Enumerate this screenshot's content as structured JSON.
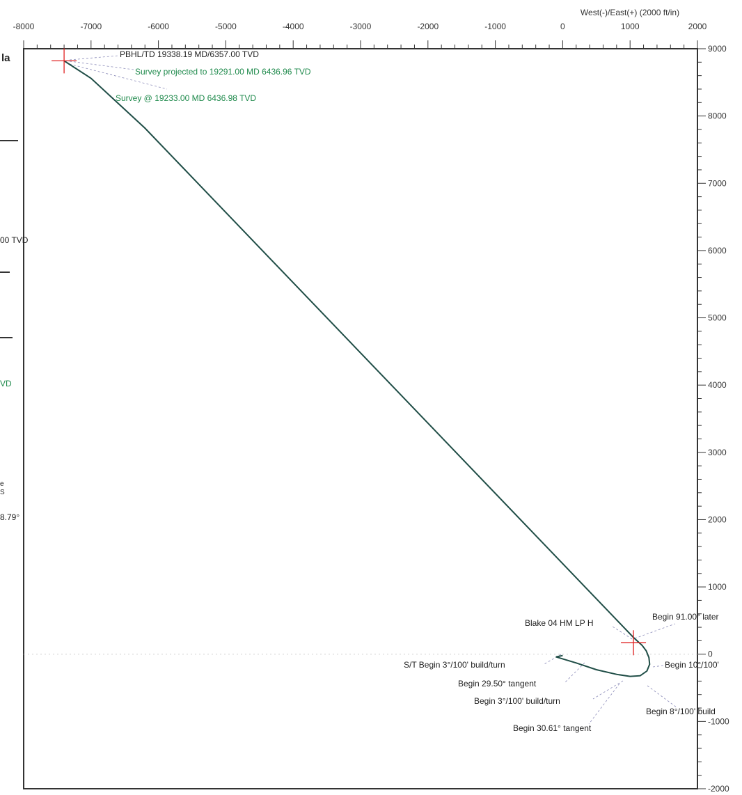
{
  "chart_data": {
    "type": "line",
    "x_axis_title": "West(-)/East(+) (2000 ft/in)",
    "x_ticks": [
      "-8000",
      "-7000",
      "-6000",
      "-5000",
      "-4000",
      "-3000",
      "-2000",
      "-1000",
      "0",
      "1000",
      "2000"
    ],
    "y_ticks": [
      "9000",
      "8000",
      "7000",
      "6000",
      "5000",
      "4000",
      "3000",
      "2000",
      "1000",
      "0",
      "-1000",
      "-2000"
    ],
    "xlim": [
      -8000,
      2000
    ],
    "ylim": [
      -2000,
      9000
    ],
    "colors": {
      "path": "#1f4d46",
      "marker": "#e02020",
      "green_text": "#1f8a4c"
    },
    "series": [
      {
        "x": [
          0,
          -100,
          200,
          500,
          800,
          1000,
          1150,
          1250,
          1290,
          1280,
          1240,
          1180,
          1050,
          -6200,
          -7000,
          -7400
        ],
        "y": [
          -20,
          -40,
          -130,
          -230,
          -300,
          -330,
          -320,
          -250,
          -150,
          -50,
          50,
          130,
          250,
          7820,
          8560,
          8820
        ]
      }
    ],
    "markers": [
      {
        "x": -7400,
        "y": 8820
      },
      {
        "x": 1050,
        "y": 170
      }
    ],
    "annotations": [
      {
        "text": "PBHL/TD 19338.19 MD/6357.00 TVD",
        "color": "dark"
      },
      {
        "text": "Survey projected to 19291.00 MD 6436.96 TVD",
        "color": "green"
      },
      {
        "text": "Survey @ 19233.00 MD 6436.98 TVD",
        "color": "green"
      },
      {
        "text": "Blake 04 HM LP H",
        "color": "dark"
      },
      {
        "text": "Begin 91.00° later",
        "color": "dark"
      },
      {
        "text": "Begin 10°/100'",
        "color": "dark"
      },
      {
        "text": "S/T Begin 3°/100' build/turn",
        "color": "dark"
      },
      {
        "text": "Begin 29.50° tangent",
        "color": "dark"
      },
      {
        "text": "Begin 3°/100' build/turn",
        "color": "dark"
      },
      {
        "text": "Begin 30.61° tangent",
        "color": "dark"
      },
      {
        "text": "Begin 8°/100' build",
        "color": "dark"
      }
    ]
  },
  "left_fragments": {
    "bold": "la",
    "tvd_1": "00 TVD",
    "tvd_2": "VD",
    "frag_1": "e",
    "frag_2": "S",
    "frag_3": "8.79°"
  }
}
